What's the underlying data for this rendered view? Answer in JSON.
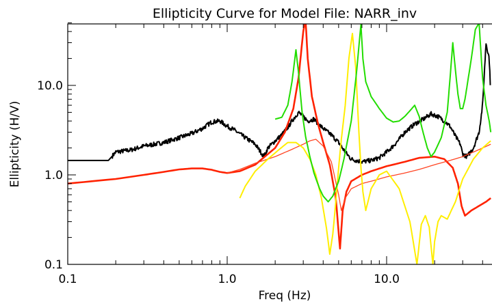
{
  "chart_data": {
    "type": "line",
    "title": "Ellipticity Curve for Model File: NARR_inv",
    "xlabel": "Freq (Hz)",
    "ylabel": "Ellipticity (H/V)",
    "x_scale": "log",
    "y_scale": "log",
    "xlim": [
      0.1,
      45
    ],
    "ylim": [
      0.1,
      50
    ],
    "x_ticks": [
      {
        "value": 0.1,
        "label": "0.1"
      },
      {
        "value": 1.0,
        "label": "1.0"
      },
      {
        "value": 10.0,
        "label": "10.0"
      }
    ],
    "y_ticks": [
      {
        "value": 0.1,
        "label": "0.1"
      },
      {
        "value": 1.0,
        "label": "1.0"
      },
      {
        "value": 10.0,
        "label": "10.0"
      }
    ],
    "grid": false,
    "legend": "none",
    "series": [
      {
        "color": "#000000",
        "noisy": true,
        "x": [
          0.1,
          0.18,
          0.2,
          0.25,
          0.3,
          0.35,
          0.4,
          0.5,
          0.6,
          0.7,
          0.8,
          0.9,
          1.0,
          1.1,
          1.3,
          1.5,
          1.7,
          1.8,
          2.0,
          2.2,
          2.4,
          2.6,
          2.8,
          3.0,
          3.2,
          3.5,
          3.8,
          4.0,
          4.5,
          5.0,
          5.5,
          6.0,
          7.0,
          8.0,
          9.0,
          10.0,
          11.0,
          12.0,
          13.0,
          15.0,
          17.0,
          19.0,
          21.0,
          23.0,
          25.0,
          27.0,
          29.0,
          30.0,
          32.0,
          35.0,
          38.0,
          40.0,
          42.0,
          44.0,
          45.0
        ],
        "y": [
          1.45,
          1.45,
          1.8,
          1.9,
          2.1,
          2.2,
          2.3,
          2.6,
          2.9,
          3.3,
          3.9,
          4.0,
          3.5,
          3.2,
          2.6,
          2.2,
          1.6,
          2.0,
          2.4,
          2.8,
          3.4,
          4.2,
          5.0,
          4.5,
          4.0,
          4.2,
          3.6,
          3.3,
          2.8,
          2.3,
          1.8,
          1.5,
          1.4,
          1.45,
          1.55,
          1.8,
          2.1,
          2.5,
          3.0,
          3.7,
          4.2,
          4.8,
          4.5,
          4.0,
          3.5,
          2.7,
          2.2,
          1.7,
          1.6,
          2.0,
          3.0,
          6.0,
          30.0,
          20.0,
          8.0
        ]
      },
      {
        "color": "#ff2200",
        "width": 2.6,
        "x": [
          0.1,
          0.2,
          0.3,
          0.4,
          0.5,
          0.6,
          0.7,
          0.8,
          0.9,
          1.0,
          1.2,
          1.5,
          2.0,
          2.3,
          2.6,
          2.8,
          3.0,
          3.1,
          3.2,
          3.4,
          3.7,
          4.0,
          4.4,
          4.8,
          5.1,
          5.3,
          5.6,
          6.0,
          7.0,
          8.0,
          10.0,
          13.0,
          16.0,
          20.0,
          23.0,
          26.0,
          28.0,
          29.5,
          31.0,
          34.0,
          38.0,
          42.0,
          45.0
        ],
        "y": [
          0.8,
          0.9,
          1.0,
          1.08,
          1.15,
          1.18,
          1.18,
          1.14,
          1.08,
          1.05,
          1.1,
          1.3,
          2.0,
          3.0,
          5.5,
          12.0,
          40.0,
          55.0,
          20.0,
          7.5,
          3.8,
          2.3,
          1.3,
          0.55,
          0.15,
          0.4,
          0.65,
          0.85,
          1.0,
          1.1,
          1.25,
          1.4,
          1.55,
          1.6,
          1.5,
          1.2,
          0.8,
          0.45,
          0.35,
          0.4,
          0.45,
          0.5,
          0.55
        ]
      },
      {
        "color": "#ff4422",
        "width": 1.3,
        "x": [
          1.0,
          1.2,
          1.5,
          2.0,
          2.5,
          3.0,
          3.3,
          3.6,
          4.0,
          4.5,
          5.0,
          5.2,
          5.5,
          6.0,
          7.0,
          8.0,
          10.0,
          13.0,
          16.0,
          20.0,
          25.0,
          30.0,
          35.0,
          40.0,
          45.0
        ],
        "y": [
          1.05,
          1.15,
          1.35,
          1.6,
          1.9,
          2.2,
          2.4,
          2.5,
          2.1,
          1.4,
          0.6,
          0.4,
          0.55,
          0.7,
          0.8,
          0.85,
          0.95,
          1.05,
          1.15,
          1.3,
          1.45,
          1.6,
          1.8,
          2.0,
          2.2
        ]
      },
      {
        "color": "#ffee00",
        "width": 2.0,
        "x": [
          1.2,
          1.3,
          1.5,
          1.8,
          2.1,
          2.4,
          2.7,
          3.0,
          3.3,
          3.6,
          3.9,
          4.2,
          4.4,
          4.6,
          4.8,
          5.0,
          5.2,
          5.5,
          5.8,
          6.1,
          6.4,
          6.7,
          6.9,
          7.1,
          7.4,
          8.0,
          9.0,
          10.0,
          12.0,
          14.0,
          15.5,
          16.5,
          17.5,
          18.5,
          19.5,
          20.0,
          21.0,
          22.0,
          24.0,
          27.0,
          30.0,
          35.0,
          40.0,
          45.0
        ],
        "y": [
          0.55,
          0.75,
          1.1,
          1.5,
          1.9,
          2.3,
          2.3,
          2.0,
          1.5,
          1.0,
          0.55,
          0.25,
          0.13,
          0.22,
          0.5,
          1.2,
          2.5,
          6.0,
          20.0,
          38.0,
          16.0,
          3.0,
          1.2,
          0.65,
          0.4,
          0.7,
          1.0,
          1.1,
          0.7,
          0.3,
          0.1,
          0.28,
          0.35,
          0.26,
          0.1,
          0.18,
          0.3,
          0.35,
          0.32,
          0.5,
          0.9,
          1.5,
          2.0,
          2.4
        ]
      },
      {
        "color": "#22dd00",
        "width": 2.0,
        "x": [
          2.0,
          2.2,
          2.4,
          2.55,
          2.7,
          2.8,
          2.95,
          3.1,
          3.3,
          3.5,
          3.8,
          4.0,
          4.3,
          4.6,
          5.0,
          5.4,
          6.0,
          6.5,
          6.9,
          7.1,
          7.4,
          8.0,
          9.0,
          10.0,
          11.0,
          12.0,
          13.0,
          14.0,
          15.0,
          16.0,
          17.0,
          18.0,
          19.0,
          20.0,
          22.0,
          24.0,
          25.0,
          26.0,
          27.0,
          28.0,
          29.0,
          30.0,
          31.0,
          32.0,
          34.0,
          36.0,
          38.0,
          40.0,
          42.0,
          44.0,
          45.0
        ],
        "y": [
          4.2,
          4.4,
          6.0,
          11.0,
          25.0,
          14.0,
          5.0,
          2.7,
          1.6,
          1.05,
          0.7,
          0.58,
          0.5,
          0.58,
          0.85,
          1.5,
          4.0,
          15.0,
          48.0,
          20.0,
          11.0,
          7.5,
          5.5,
          4.3,
          3.9,
          4.0,
          4.5,
          5.2,
          6.0,
          4.5,
          2.9,
          2.0,
          1.6,
          1.8,
          2.6,
          5.0,
          12.0,
          30.0,
          15.0,
          8.0,
          5.5,
          5.5,
          7.0,
          10.0,
          20.0,
          42.0,
          50.0,
          12.0,
          6.0,
          4.0,
          3.0
        ]
      }
    ]
  }
}
